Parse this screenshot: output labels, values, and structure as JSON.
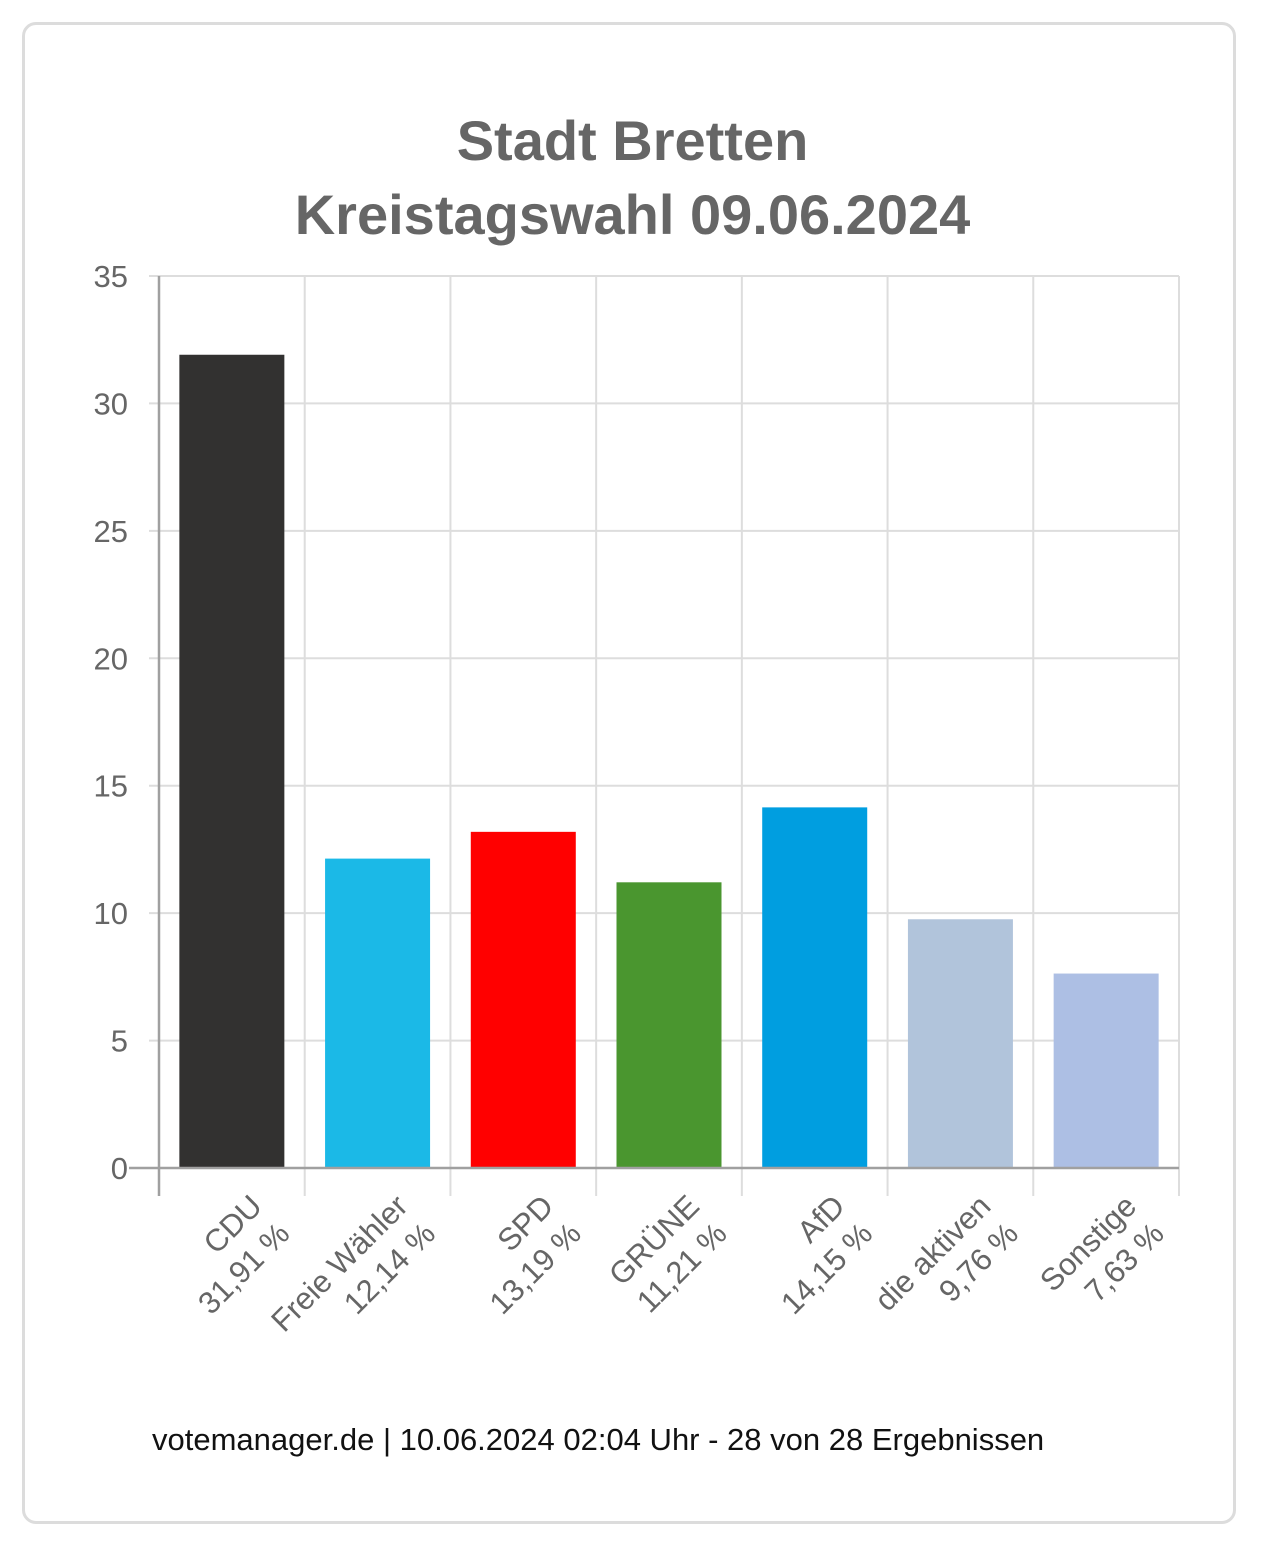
{
  "chart_data": {
    "type": "bar",
    "title_line1": "Stadt Bretten",
    "title_line2": "Kreistagswahl 09.06.2024",
    "categories": [
      "CDU",
      "Freie Wähler",
      "SPD",
      "GRÜNE",
      "AfD",
      "die aktiven",
      "Sonstige"
    ],
    "value_labels": [
      "31,91 %",
      "12,14 %",
      "13,19 %",
      "11,21 %",
      "14,15 %",
      "9,76 %",
      "7,63 %"
    ],
    "values": [
      31.91,
      12.14,
      13.19,
      11.21,
      14.15,
      9.76,
      7.63
    ],
    "colors": [
      "#323130",
      "#1bb9e7",
      "#ff0000",
      "#4a962f",
      "#009ee0",
      "#b1c4db",
      "#adbfe4"
    ],
    "yticks": [
      "0",
      "5",
      "10",
      "15",
      "20",
      "25",
      "30",
      "35"
    ],
    "ylim": [
      0,
      35
    ],
    "grid": true,
    "xlabel": "",
    "ylabel": ""
  },
  "footer": "votemanager.de | 10.06.2024 02:04 Uhr - 28 von 28 Ergebnissen"
}
